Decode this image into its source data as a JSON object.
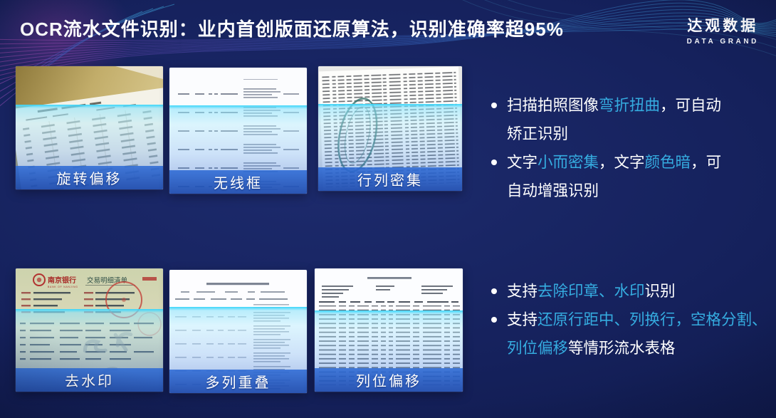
{
  "header": {
    "title": "OCR流水文件识别：业内首创版面还原算法，识别准确率超95%",
    "logo_cn": "达观数据",
    "logo_en": "DATA GRAND"
  },
  "gallery": {
    "items": [
      {
        "label": "旋转偏移"
      },
      {
        "label": "无线框"
      },
      {
        "label": "行列密集"
      },
      {
        "label": "去水印",
        "doc_bank": "南京银行",
        "doc_bank_en": "BANK OF NANJING",
        "doc_title": "交易明细清单"
      },
      {
        "label": "多列重叠"
      },
      {
        "label": "列位偏移"
      }
    ]
  },
  "bullet_groups": [
    {
      "name": "capture-quality",
      "bullets": [
        {
          "lines": [
            [
              {
                "t": "扫描拍照图像"
              },
              {
                "t": "弯折扭曲",
                "h": true
              },
              {
                "t": "，可自动"
              }
            ],
            [
              {
                "t": "矫正识别"
              }
            ]
          ]
        },
        {
          "lines": [
            [
              {
                "t": "文字"
              },
              {
                "t": "小而密集",
                "h": true
              },
              {
                "t": "，文字"
              },
              {
                "t": "颜色暗",
                "h": true
              },
              {
                "t": "，可"
              }
            ],
            [
              {
                "t": "自动增强识别"
              }
            ]
          ]
        }
      ]
    },
    {
      "name": "table-restore",
      "bullets": [
        {
          "lines": [
            [
              {
                "t": "支持"
              },
              {
                "t": "去除印章、水印",
                "h": true
              },
              {
                "t": "识别"
              }
            ]
          ]
        },
        {
          "lines": [
            [
              {
                "t": "支持"
              },
              {
                "t": "还原行距中、列换行，空格分割、",
                "h": true
              }
            ],
            [
              {
                "t": "列位偏移",
                "h": true
              },
              {
                "t": "等情形流水表格"
              }
            ]
          ]
        }
      ]
    }
  ],
  "colors": {
    "highlight": "#35ace0",
    "caption-top": "#2f6cd6e0",
    "caption-bottom": "#1a48ace0",
    "scan-line": "#3cd6fa",
    "text": "#ffffff"
  }
}
